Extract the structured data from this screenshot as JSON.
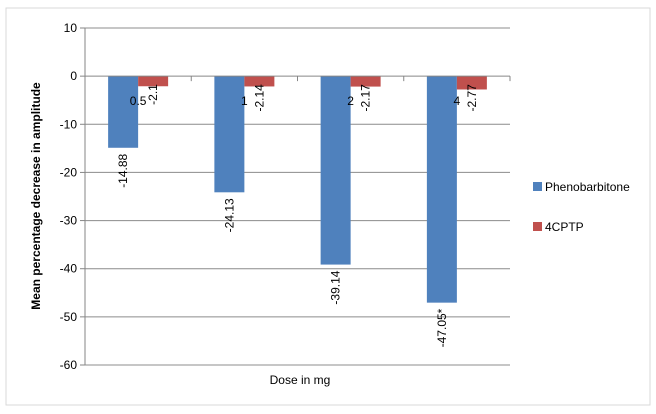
{
  "chart_data": {
    "type": "bar",
    "title": "",
    "xlabel": "Dose in mg",
    "ylabel": "Mean percentage decrease in amplitude",
    "categories": [
      "0.5",
      "1",
      "2",
      "4"
    ],
    "series": [
      {
        "name": "Phenobarbitone",
        "color": "#4f81bd",
        "values": [
          -14.88,
          -24.13,
          -39.14,
          -47.05
        ],
        "labels": [
          "-14.88",
          "-24.13",
          "-39.14",
          "-47.05*"
        ]
      },
      {
        "name": "4CPTP",
        "color": "#c0504d",
        "values": [
          -2.1,
          -2.14,
          -2.17,
          -2.77
        ],
        "labels": [
          "-2.1",
          "-2.14",
          "-2.17",
          "-2.77"
        ]
      }
    ],
    "ylim": [
      -60,
      10
    ],
    "yticks": [
      "10",
      "0",
      "-10",
      "-20",
      "-30",
      "-40",
      "-50",
      "-60"
    ],
    "grid": true,
    "legend": "right"
  }
}
